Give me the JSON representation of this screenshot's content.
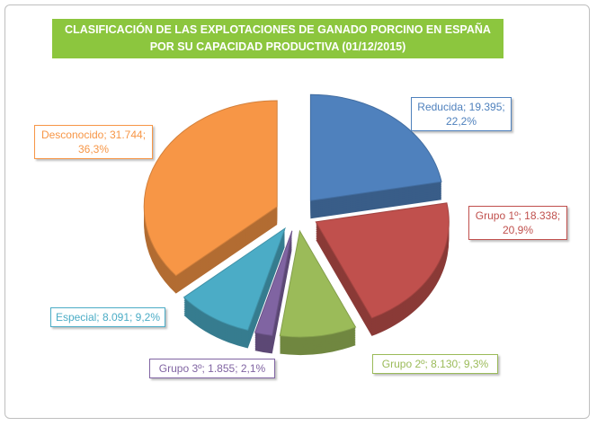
{
  "chart_data": {
    "type": "pie",
    "title": "CLASIFICACIÓN DE LAS EXPLOTACIONES DE GANADO PORCINO EN ESPAÑA POR SU CAPACIDAD PRODUCTIVA (01/12/2015)",
    "categories": [
      "Reducida",
      "Grupo 1º",
      "Grupo 2º",
      "Grupo 3º",
      "Especial",
      "Desconocido"
    ],
    "values": [
      19395,
      18338,
      8130,
      1855,
      8091,
      31744
    ],
    "value_labels": [
      "Reducida; 19.395; 22,2%",
      "Grupo 1º; 18.338; 20,9%",
      "Grupo 2º; 8.130; 9,3%",
      "Grupo 3º; 1.855; 2,1%",
      "Especial; 8.091; 9,2%",
      "Desconocido; 31.744; 36,3%"
    ],
    "colors": [
      "#4f81bd",
      "#c0504d",
      "#9bbb59",
      "#8064a2",
      "#4bacc6",
      "#f79646"
    ]
  }
}
